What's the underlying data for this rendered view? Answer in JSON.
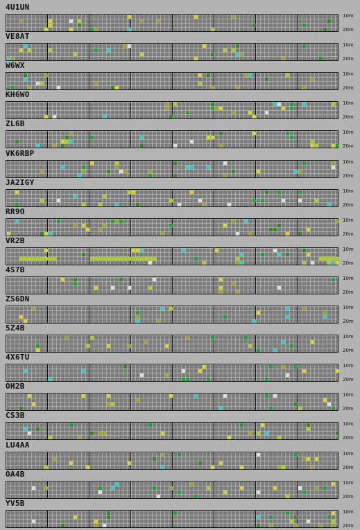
{
  "band_labels": {
    "top": "10m",
    "bottom": "20m"
  },
  "palette": {
    "yellow": "#d7d71f",
    "olive": "#9fa624",
    "lime": "#aed21c",
    "green": "#17a535",
    "cyan": "#2bd1cf",
    "white": "#dedede",
    "darkgreen": "#2f8a22"
  },
  "stations": [
    {
      "callsign": "4U1UN"
    },
    {
      "callsign": "VE8AT"
    },
    {
      "callsign": "W6WX"
    },
    {
      "callsign": "KH6WO"
    },
    {
      "callsign": "ZL6B"
    },
    {
      "callsign": "VK6RBP"
    },
    {
      "callsign": "JA2IGY"
    },
    {
      "callsign": "RR9O"
    },
    {
      "callsign": "VR2B"
    },
    {
      "callsign": "4S7B"
    },
    {
      "callsign": "ZS6DN"
    },
    {
      "callsign": "5Z4B"
    },
    {
      "callsign": "4X6TU"
    },
    {
      "callsign": "OH2B"
    },
    {
      "callsign": "CS3B"
    },
    {
      "callsign": "LU4AA"
    },
    {
      "callsign": "OA4B"
    },
    {
      "callsign": "YV5B"
    }
  ]
}
